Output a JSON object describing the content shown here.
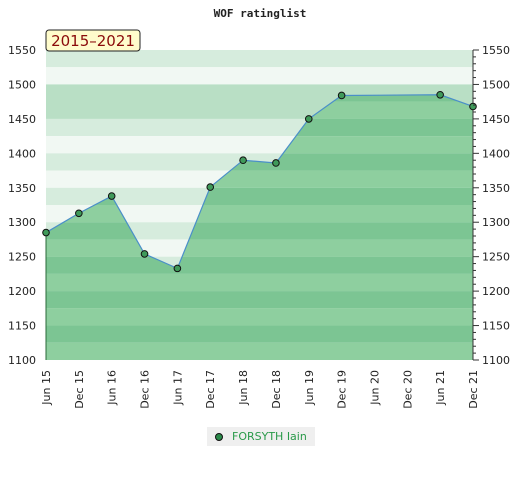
{
  "chart_data": {
    "type": "area",
    "title": "WOF ratinglist",
    "period_label": "2015–2021",
    "x_ticks": [
      "Jun 15",
      "Dec 15",
      "Jun 16",
      "Dec 16",
      "Jun 17",
      "Dec 17",
      "Jun 18",
      "Dec 18",
      "Jun 19",
      "Dec 19",
      "Jun 20",
      "Dec 20",
      "Jun 21",
      "Dec 21"
    ],
    "x": [
      "Jun 15",
      "Dec 15",
      "Jun 16",
      "Dec 16",
      "Jun 17",
      "Dec 17",
      "Jun 18",
      "Dec 18",
      "Jun 19",
      "Dec 19",
      "Jun 21",
      "Dec 21"
    ],
    "series": [
      {
        "name": "FORSYTH Iain",
        "values": [
          1285,
          1313,
          1338,
          1254,
          1233,
          1351,
          1390,
          1386,
          1450,
          1484,
          1485,
          1468
        ],
        "color": "#2a8a4a"
      }
    ],
    "ylim": [
      1100,
      1550
    ],
    "y_ticks": [
      1100,
      1150,
      1200,
      1250,
      1300,
      1350,
      1400,
      1450,
      1500,
      1550
    ],
    "grid": true,
    "legend_position": "bottom"
  }
}
